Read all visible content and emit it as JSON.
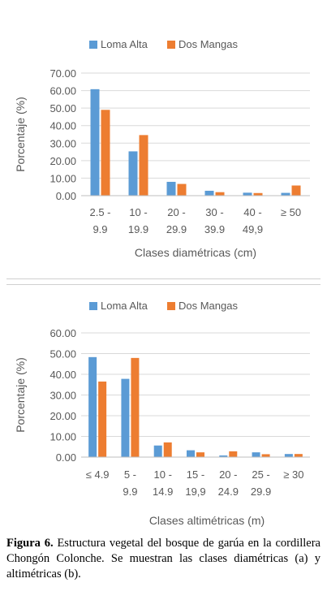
{
  "colors": {
    "loma_alta": "#5B9BD5",
    "dos_mangas": "#ED7D31",
    "grid": "#d9d9d9",
    "text": "#595959"
  },
  "chart_data": [
    {
      "type": "bar",
      "categories": [
        [
          "2.5 -",
          "9.9"
        ],
        [
          "10 -",
          "19.9"
        ],
        [
          "20 -",
          "29.9"
        ],
        [
          "30 -",
          "39.9"
        ],
        [
          "40 -",
          "49,9"
        ],
        [
          "≥ 50",
          ""
        ]
      ],
      "series": [
        {
          "name": "Loma Alta",
          "values": [
            60.8,
            25.3,
            7.9,
            2.8,
            1.7,
            1.6
          ]
        },
        {
          "name": "Dos Mangas",
          "values": [
            49.0,
            34.6,
            6.7,
            2.0,
            1.5,
            5.8
          ]
        }
      ],
      "yticks": [
        "0.00",
        "10.00",
        "20.00",
        "30.00",
        "40.00",
        "50.00",
        "60.00",
        "70.00"
      ],
      "ylim": [
        0,
        70
      ],
      "ylabel": "Porcentaje (%)",
      "xlabel": "Clases diamétricas (cm)",
      "legend": "top",
      "grid": true
    },
    {
      "type": "bar",
      "categories": [
        [
          "≤ 4.9",
          ""
        ],
        [
          "5 -",
          "9.9"
        ],
        [
          "10 -",
          "14.9"
        ],
        [
          "15 -",
          "19,9"
        ],
        [
          "20 -",
          "24.9"
        ],
        [
          "25 -",
          "29.9"
        ],
        [
          "≥ 30",
          ""
        ]
      ],
      "series": [
        {
          "name": "Loma Alta",
          "values": [
            48.3,
            37.8,
            5.6,
            3.3,
            0.8,
            2.3,
            1.5
          ]
        },
        {
          "name": "Dos Mangas",
          "values": [
            36.5,
            47.9,
            7.1,
            2.3,
            2.8,
            1.4,
            1.5
          ]
        }
      ],
      "yticks": [
        "0.00",
        "10.00",
        "20.00",
        "30.00",
        "40.00",
        "50.00",
        "60.00"
      ],
      "ylim": [
        0,
        60
      ],
      "ylabel": "Porcentaje (%)",
      "xlabel": "Clases altimétricas (m)",
      "legend": "top",
      "grid": true
    }
  ],
  "caption": {
    "label": "Figura 6.",
    "text": " Estructura vegetal del bosque de garúa en la cordillera Chongón Colonche. Se muestran las clases diamétricas (a) y altimétricas (b)."
  }
}
